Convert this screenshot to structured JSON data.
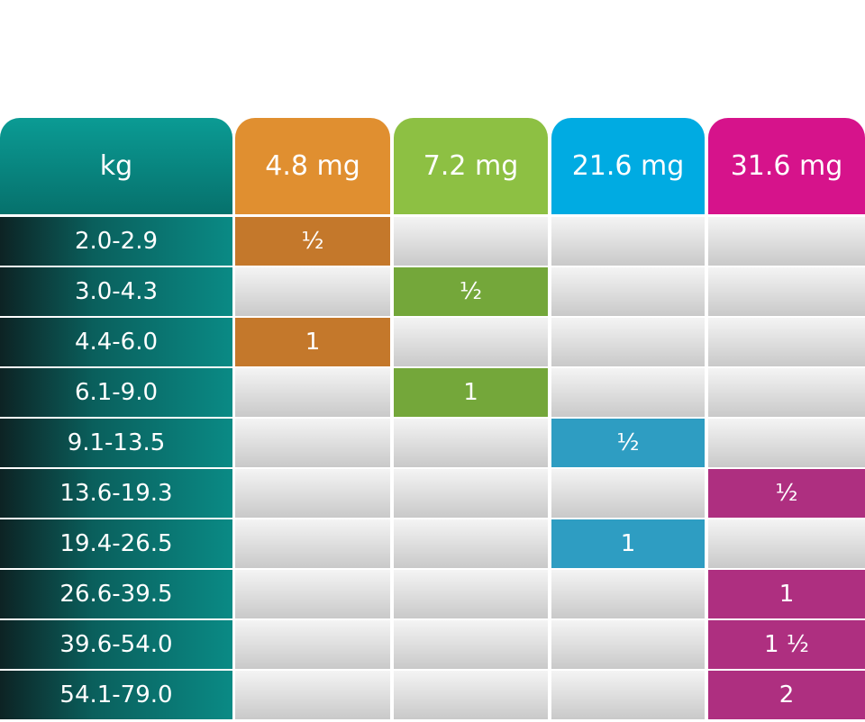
{
  "header": {
    "columns": [
      {
        "label": "kg",
        "color": "#0a8e88"
      },
      {
        "label": "4.8 mg",
        "color": "#e08f30"
      },
      {
        "label": "7.2 mg",
        "color": "#8dc043"
      },
      {
        "label": "21.6 mg",
        "color": "#00abe2"
      },
      {
        "label": "31.6 mg",
        "color": "#d6138b"
      }
    ]
  },
  "table": {
    "cell_colors": [
      null,
      "#c4782b",
      "#74a73a",
      "#2e9dc2",
      "#ae2f80"
    ],
    "rows": [
      [
        "2.0-2.9",
        "½",
        null,
        null,
        null
      ],
      [
        "3.0-4.3",
        null,
        "½",
        null,
        null
      ],
      [
        "4.4-6.0",
        "1",
        null,
        null,
        null
      ],
      [
        "6.1-9.0",
        null,
        "1",
        null,
        null
      ],
      [
        "9.1-13.5",
        null,
        null,
        "½",
        null
      ],
      [
        "13.6-19.3",
        null,
        null,
        null,
        "½"
      ],
      [
        "19.4-26.5",
        null,
        null,
        "1",
        null
      ],
      [
        "26.6-39.5",
        null,
        null,
        null,
        "1"
      ],
      [
        "39.6-54.0",
        null,
        null,
        null,
        "1 ½"
      ],
      [
        "54.1-79.0",
        null,
        null,
        null,
        "2"
      ]
    ]
  }
}
